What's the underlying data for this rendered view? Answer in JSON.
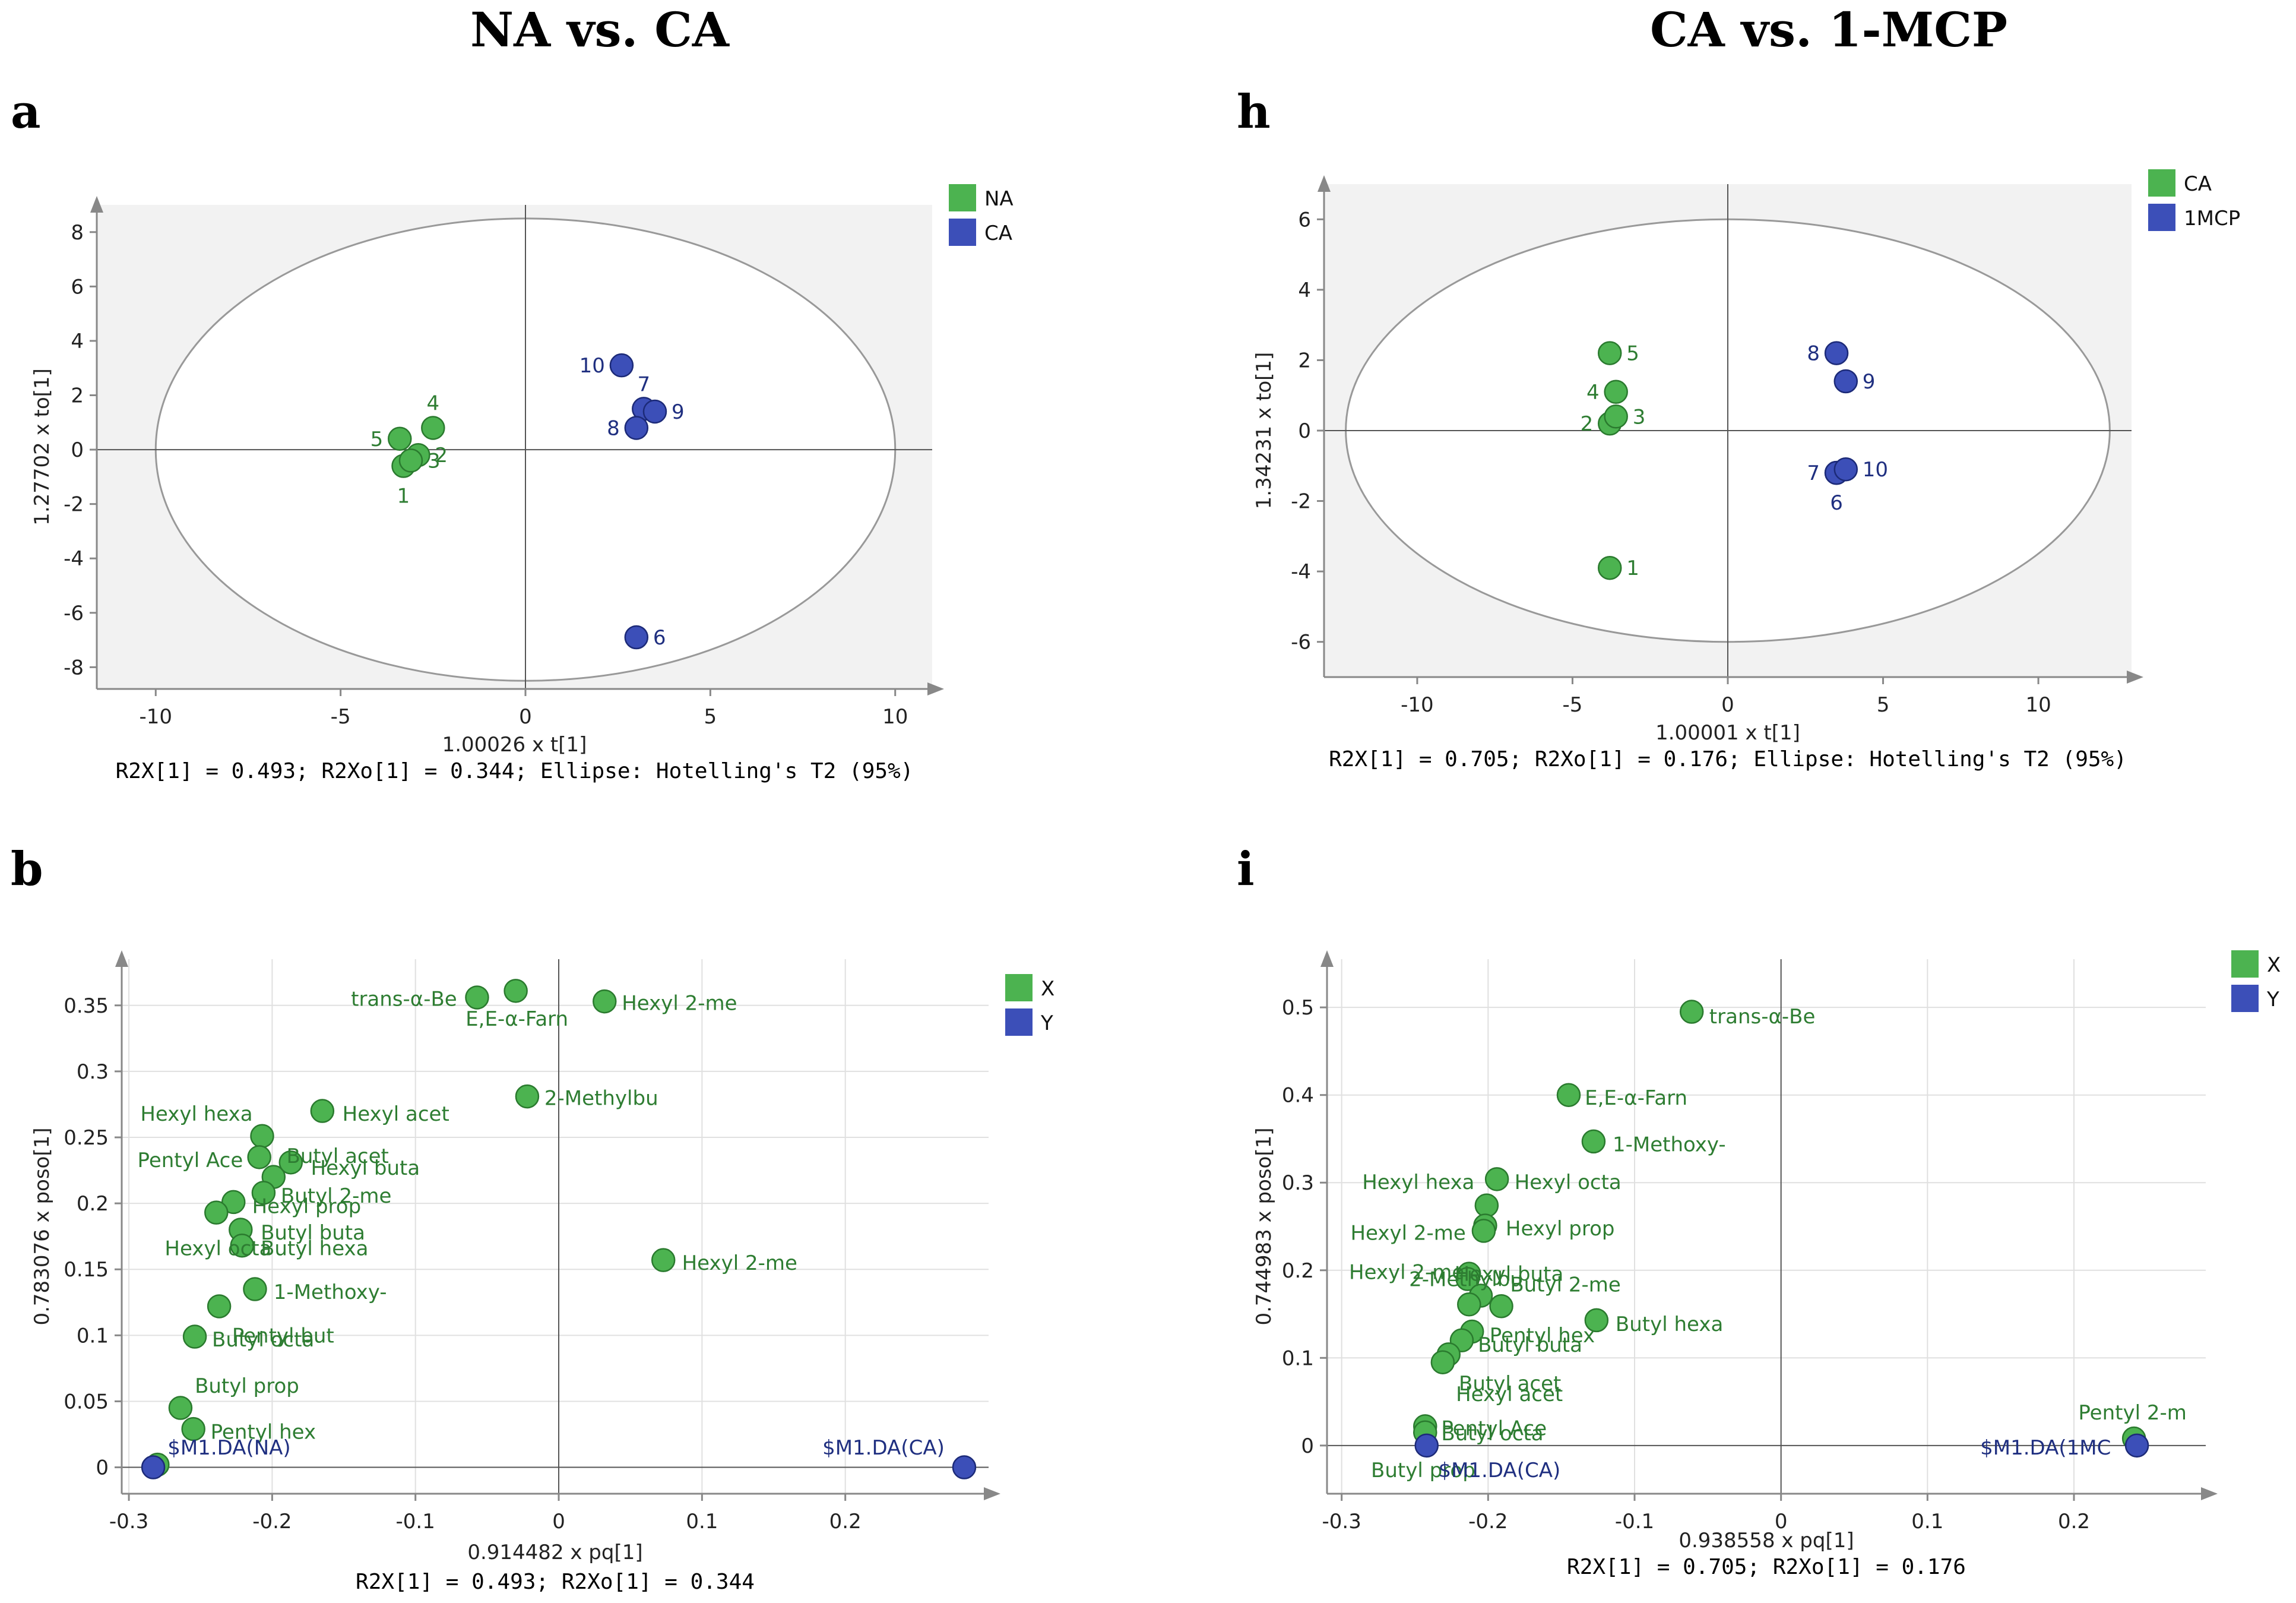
{
  "figure": {
    "left_title": "NA vs. CA",
    "right_title": "CA vs. 1-MCP",
    "colors": {
      "green": "#4cb350",
      "green_text": "#2e7d32",
      "blue": "#3c4fb8",
      "blue_text": "#1f2f80",
      "panel_bg": "#f2f2f2"
    }
  },
  "chart_data": [
    {
      "id": "a",
      "panel_label": "a",
      "type": "scatter",
      "xlabel": "1.00026 x t[1]",
      "ylabel": "1.27702 x to[1]",
      "footer": "R2X[1] = 0.493; R2Xo[1] = 0.344; Ellipse: Hotelling's T2 (95%)",
      "xlim": [
        -11,
        11
      ],
      "ylim": [
        -8.8,
        9.0
      ],
      "xticks": [
        -10,
        -5,
        0,
        5,
        10
      ],
      "yticks": [
        -8,
        -6,
        -4,
        -2,
        0,
        2,
        4,
        6,
        8
      ],
      "ellipse": {
        "cx": 0,
        "cy": 0,
        "rx": 10.0,
        "ry": 8.5
      },
      "legend": [
        {
          "label": "NA",
          "color": "green"
        },
        {
          "label": "CA",
          "color": "blue"
        }
      ],
      "points": [
        {
          "label": "1",
          "x": -3.3,
          "y": -0.6,
          "color": "green",
          "lpos": "below"
        },
        {
          "label": "2",
          "x": -2.9,
          "y": -0.2,
          "color": "green",
          "lpos": "right"
        },
        {
          "label": "3",
          "x": -3.1,
          "y": -0.4,
          "color": "green",
          "lpos": "right"
        },
        {
          "label": "4",
          "x": -2.5,
          "y": 0.8,
          "color": "green",
          "lpos": "above"
        },
        {
          "label": "5",
          "x": -3.4,
          "y": 0.4,
          "color": "green",
          "lpos": "left"
        },
        {
          "label": "6",
          "x": 3.0,
          "y": -6.9,
          "color": "blue",
          "lpos": "right"
        },
        {
          "label": "7",
          "x": 3.2,
          "y": 1.5,
          "color": "blue",
          "lpos": "above"
        },
        {
          "label": "8",
          "x": 3.0,
          "y": 0.8,
          "color": "blue",
          "lpos": "left"
        },
        {
          "label": "9",
          "x": 3.5,
          "y": 1.4,
          "color": "blue",
          "lpos": "right"
        },
        {
          "label": "10",
          "x": 2.6,
          "y": 3.1,
          "color": "blue",
          "lpos": "left"
        }
      ]
    },
    {
      "id": "h",
      "panel_label": "h",
      "type": "scatter",
      "xlabel": "1.00001 x t[1]",
      "ylabel": "1.34231 x to[1]",
      "footer": "R2X[1] = 0.705; R2Xo[1] = 0.176; Ellipse: Hotelling's T2 (95%)",
      "xlim": [
        -13,
        13
      ],
      "ylim": [
        -7.0,
        7.0
      ],
      "xticks": [
        -10,
        -5,
        0,
        5,
        10
      ],
      "yticks": [
        -6,
        -4,
        -2,
        0,
        2,
        4,
        6
      ],
      "ellipse": {
        "cx": 0,
        "cy": 0,
        "rx": 12.3,
        "ry": 6.0
      },
      "legend": [
        {
          "label": "CA",
          "color": "green"
        },
        {
          "label": "1MCP",
          "color": "blue"
        }
      ],
      "points": [
        {
          "label": "1",
          "x": -3.8,
          "y": -3.9,
          "color": "green",
          "lpos": "right"
        },
        {
          "label": "2",
          "x": -3.8,
          "y": 0.2,
          "color": "green",
          "lpos": "left"
        },
        {
          "label": "3",
          "x": -3.6,
          "y": 0.4,
          "color": "green",
          "lpos": "right"
        },
        {
          "label": "4",
          "x": -3.6,
          "y": 1.1,
          "color": "green",
          "lpos": "left"
        },
        {
          "label": "5",
          "x": -3.8,
          "y": 2.2,
          "color": "green",
          "lpos": "right"
        },
        {
          "label": "6",
          "x": 3.5,
          "y": -1.2,
          "color": "blue",
          "lpos": "below"
        },
        {
          "label": "7",
          "x": 3.5,
          "y": -1.2,
          "color": "blue",
          "lpos": "left"
        },
        {
          "label": "8",
          "x": 3.5,
          "y": 2.2,
          "color": "blue",
          "lpos": "left"
        },
        {
          "label": "9",
          "x": 3.8,
          "y": 1.4,
          "color": "blue",
          "lpos": "right"
        },
        {
          "label": "10",
          "x": 3.8,
          "y": -1.1,
          "color": "blue",
          "lpos": "right"
        }
      ]
    },
    {
      "id": "b",
      "panel_label": "b",
      "type": "scatter",
      "xlabel": "0.914482 x pq[1]",
      "ylabel": "0.783076 x poso[1]",
      "footer": "R2X[1] = 0.493; R2Xo[1] = 0.344",
      "xlim": [
        -0.305,
        0.3
      ],
      "ylim": [
        -0.02,
        0.385
      ],
      "xticks": [
        -0.3,
        -0.2,
        -0.1,
        0,
        0.1,
        0.2
      ],
      "xticklabels": [
        "-0.3",
        "-0.2",
        "-0.1",
        "0",
        "0.1",
        "0.2"
      ],
      "yticks": [
        0,
        0.05,
        0.1,
        0.15,
        0.2,
        0.25,
        0.3,
        0.35
      ],
      "yticklabels": [
        "0",
        "0.05",
        "0.1",
        "0.15",
        "0.2",
        "0.25",
        "0.3",
        "0.35"
      ],
      "legend": [
        {
          "label": "X",
          "color": "green"
        },
        {
          "label": "Y",
          "color": "blue"
        }
      ],
      "points": [
        {
          "label": "",
          "x": -0.057,
          "y": 0.356,
          "color": "green"
        },
        {
          "label": "",
          "x": -0.03,
          "y": 0.361,
          "color": "green"
        },
        {
          "label": "",
          "x": 0.032,
          "y": 0.353,
          "color": "green"
        },
        {
          "label": "",
          "x": -0.022,
          "y": 0.281,
          "color": "green"
        },
        {
          "label": "",
          "x": -0.165,
          "y": 0.27,
          "color": "green"
        },
        {
          "label": "",
          "x": -0.207,
          "y": 0.251,
          "color": "green"
        },
        {
          "label": "",
          "x": -0.209,
          "y": 0.235,
          "color": "green"
        },
        {
          "label": "",
          "x": -0.187,
          "y": 0.231,
          "color": "green"
        },
        {
          "label": "",
          "x": -0.199,
          "y": 0.22,
          "color": "green"
        },
        {
          "label": "",
          "x": -0.206,
          "y": 0.208,
          "color": "green"
        },
        {
          "label": "",
          "x": -0.227,
          "y": 0.201,
          "color": "green"
        },
        {
          "label": "",
          "x": -0.239,
          "y": 0.193,
          "color": "green"
        },
        {
          "label": "",
          "x": -0.222,
          "y": 0.18,
          "color": "green"
        },
        {
          "label": "",
          "x": -0.221,
          "y": 0.168,
          "color": "green"
        },
        {
          "label": "",
          "x": 0.073,
          "y": 0.157,
          "color": "green"
        },
        {
          "label": "",
          "x": -0.212,
          "y": 0.135,
          "color": "green"
        },
        {
          "label": "",
          "x": -0.237,
          "y": 0.122,
          "color": "green"
        },
        {
          "label": "",
          "x": -0.254,
          "y": 0.099,
          "color": "green"
        },
        {
          "label": "",
          "x": -0.264,
          "y": 0.045,
          "color": "green"
        },
        {
          "label": "",
          "x": -0.255,
          "y": 0.029,
          "color": "green"
        },
        {
          "label": "",
          "x": -0.28,
          "y": 0.002,
          "color": "green"
        },
        {
          "label": "",
          "x": -0.283,
          "y": 0.0,
          "color": "blue"
        },
        {
          "label": "",
          "x": 0.283,
          "y": 0.0,
          "color": "blue"
        }
      ],
      "annotations": [
        {
          "text": "trans-α-Be",
          "x": -0.145,
          "y": 0.355,
          "color": "green"
        },
        {
          "text": "E,E-α-Farn",
          "x": -0.065,
          "y": 0.34,
          "color": "green"
        },
        {
          "text": "Hexyl 2-me",
          "x": 0.044,
          "y": 0.352,
          "color": "green"
        },
        {
          "text": "2-Methylbu",
          "x": -0.01,
          "y": 0.28,
          "color": "green"
        },
        {
          "text": "Hexyl hexa",
          "x": -0.292,
          "y": 0.268,
          "color": "green"
        },
        {
          "text": "Hexyl acet",
          "x": -0.151,
          "y": 0.268,
          "color": "green"
        },
        {
          "text": "Pentyl Ace",
          "x": -0.294,
          "y": 0.233,
          "color": "green"
        },
        {
          "text": "Butyl acet",
          "x": -0.19,
          "y": 0.236,
          "color": "green"
        },
        {
          "text": "Hexyl buta",
          "x": -0.173,
          "y": 0.227,
          "color": "green"
        },
        {
          "text": "Butyl 2-me",
          "x": -0.194,
          "y": 0.206,
          "color": "green"
        },
        {
          "text": "Hexyl prop",
          "x": -0.214,
          "y": 0.198,
          "color": "green"
        },
        {
          "text": "Butyl buta",
          "x": -0.208,
          "y": 0.178,
          "color": "green"
        },
        {
          "text": "Hexyl octa",
          "x": -0.275,
          "y": 0.166,
          "color": "green"
        },
        {
          "text": "Butyl hexa",
          "x": -0.208,
          "y": 0.166,
          "color": "green"
        },
        {
          "text": "Hexyl 2-me",
          "x": 0.086,
          "y": 0.155,
          "color": "green"
        },
        {
          "text": "1-Methoxy-",
          "x": -0.199,
          "y": 0.133,
          "color": "green"
        },
        {
          "text": "Pentyl but",
          "x": -0.228,
          "y": 0.1,
          "color": "green"
        },
        {
          "text": "Butyl octa",
          "x": -0.242,
          "y": 0.097,
          "color": "green"
        },
        {
          "text": "Butyl prop",
          "x": -0.254,
          "y": 0.062,
          "color": "green"
        },
        {
          "text": "Pentyl hex",
          "x": -0.243,
          "y": 0.027,
          "color": "green"
        },
        {
          "text": "$M1.DA(NA)",
          "x": -0.273,
          "y": 0.015,
          "color": "blue"
        },
        {
          "text": "$M1.DA(CA)",
          "x": 0.184,
          "y": 0.015,
          "color": "blue"
        }
      ]
    },
    {
      "id": "i",
      "panel_label": "i",
      "type": "scatter",
      "xlabel": "0.938558 x pq[1]",
      "ylabel": "0.744983 x poso[1]",
      "footer": "R2X[1] = 0.705; R2Xo[1] = 0.176",
      "xlim": [
        -0.31,
        0.29
      ],
      "ylim": [
        -0.055,
        0.555
      ],
      "xticks": [
        -0.3,
        -0.2,
        -0.1,
        0,
        0.1,
        0.2
      ],
      "xticklabels": [
        "-0.3",
        "-0.2",
        "-0.1",
        "0",
        "0.1",
        "0.2"
      ],
      "yticks": [
        0,
        0.1,
        0.2,
        0.3,
        0.4,
        0.5
      ],
      "yticklabels": [
        "0",
        "0.1",
        "0.2",
        "0.3",
        "0.4",
        "0.5"
      ],
      "legend": [
        {
          "label": "X",
          "color": "green"
        },
        {
          "label": "Y",
          "color": "blue"
        }
      ],
      "points": [
        {
          "label": "",
          "x": -0.061,
          "y": 0.495,
          "color": "green"
        },
        {
          "label": "",
          "x": -0.145,
          "y": 0.4,
          "color": "green"
        },
        {
          "label": "",
          "x": -0.128,
          "y": 0.347,
          "color": "green"
        },
        {
          "label": "",
          "x": -0.194,
          "y": 0.304,
          "color": "green"
        },
        {
          "label": "",
          "x": -0.201,
          "y": 0.274,
          "color": "green"
        },
        {
          "label": "",
          "x": -0.202,
          "y": 0.251,
          "color": "green"
        },
        {
          "label": "",
          "x": -0.203,
          "y": 0.245,
          "color": "green"
        },
        {
          "label": "",
          "x": -0.213,
          "y": 0.196,
          "color": "green"
        },
        {
          "label": "",
          "x": -0.214,
          "y": 0.19,
          "color": "green"
        },
        {
          "label": "",
          "x": -0.205,
          "y": 0.171,
          "color": "green"
        },
        {
          "label": "",
          "x": -0.213,
          "y": 0.161,
          "color": "green"
        },
        {
          "label": "",
          "x": -0.191,
          "y": 0.159,
          "color": "green"
        },
        {
          "label": "",
          "x": -0.126,
          "y": 0.143,
          "color": "green"
        },
        {
          "label": "",
          "x": -0.211,
          "y": 0.13,
          "color": "green"
        },
        {
          "label": "",
          "x": -0.218,
          "y": 0.12,
          "color": "green"
        },
        {
          "label": "",
          "x": -0.227,
          "y": 0.104,
          "color": "green"
        },
        {
          "label": "",
          "x": -0.231,
          "y": 0.095,
          "color": "green"
        },
        {
          "label": "",
          "x": -0.243,
          "y": 0.022,
          "color": "green"
        },
        {
          "label": "",
          "x": -0.243,
          "y": 0.015,
          "color": "green"
        },
        {
          "label": "",
          "x": 0.241,
          "y": 0.008,
          "color": "green"
        },
        {
          "label": "",
          "x": -0.242,
          "y": 0.0,
          "color": "blue"
        },
        {
          "label": "",
          "x": 0.243,
          "y": 0.0,
          "color": "blue"
        }
      ],
      "annotations": [
        {
          "text": "trans-α-Be",
          "x": -0.049,
          "y": 0.49,
          "color": "green"
        },
        {
          "text": "E,E-α-Farn",
          "x": -0.134,
          "y": 0.397,
          "color": "green"
        },
        {
          "text": "1-Methoxy-",
          "x": -0.115,
          "y": 0.344,
          "color": "green"
        },
        {
          "text": "Hexyl hexa",
          "x": -0.286,
          "y": 0.301,
          "color": "green"
        },
        {
          "text": "Hexyl octa",
          "x": -0.182,
          "y": 0.301,
          "color": "green"
        },
        {
          "text": "Hexyl 2-me",
          "x": -0.294,
          "y": 0.243,
          "color": "green"
        },
        {
          "text": "Hexyl prop",
          "x": -0.188,
          "y": 0.248,
          "color": "green"
        },
        {
          "text": "Hexyl 2-me",
          "x": -0.295,
          "y": 0.198,
          "color": "green"
        },
        {
          "text": "Hexyl buta",
          "x": -0.223,
          "y": 0.196,
          "color": "green"
        },
        {
          "text": "2-Methylbu",
          "x": -0.254,
          "y": 0.19,
          "color": "green"
        },
        {
          "text": "Butyl 2-me",
          "x": -0.185,
          "y": 0.184,
          "color": "green"
        },
        {
          "text": "Butyl hexa",
          "x": -0.113,
          "y": 0.139,
          "color": "green"
        },
        {
          "text": "Pentyl hex",
          "x": -0.199,
          "y": 0.126,
          "color": "green"
        },
        {
          "text": "Butyl buta",
          "x": -0.207,
          "y": 0.115,
          "color": "green"
        },
        {
          "text": "Butyl acet",
          "x": -0.22,
          "y": 0.071,
          "color": "green"
        },
        {
          "text": "Hexyl acet",
          "x": -0.222,
          "y": 0.059,
          "color": "green"
        },
        {
          "text": "Pentyl Ace",
          "x": -0.232,
          "y": 0.02,
          "color": "green"
        },
        {
          "text": "Butyl octa",
          "x": -0.232,
          "y": 0.014,
          "color": "green"
        },
        {
          "text": "Pentyl 2-m",
          "x": 0.203,
          "y": 0.038,
          "color": "green"
        },
        {
          "text": "Butyl prop",
          "x": -0.28,
          "y": -0.028,
          "color": "green"
        },
        {
          "text": "$M1.DA(CA)",
          "x": -0.234,
          "y": -0.028,
          "color": "blue"
        },
        {
          "text": "$M1.DA(1MC",
          "x": 0.136,
          "y": -0.002,
          "color": "blue"
        }
      ]
    }
  ]
}
